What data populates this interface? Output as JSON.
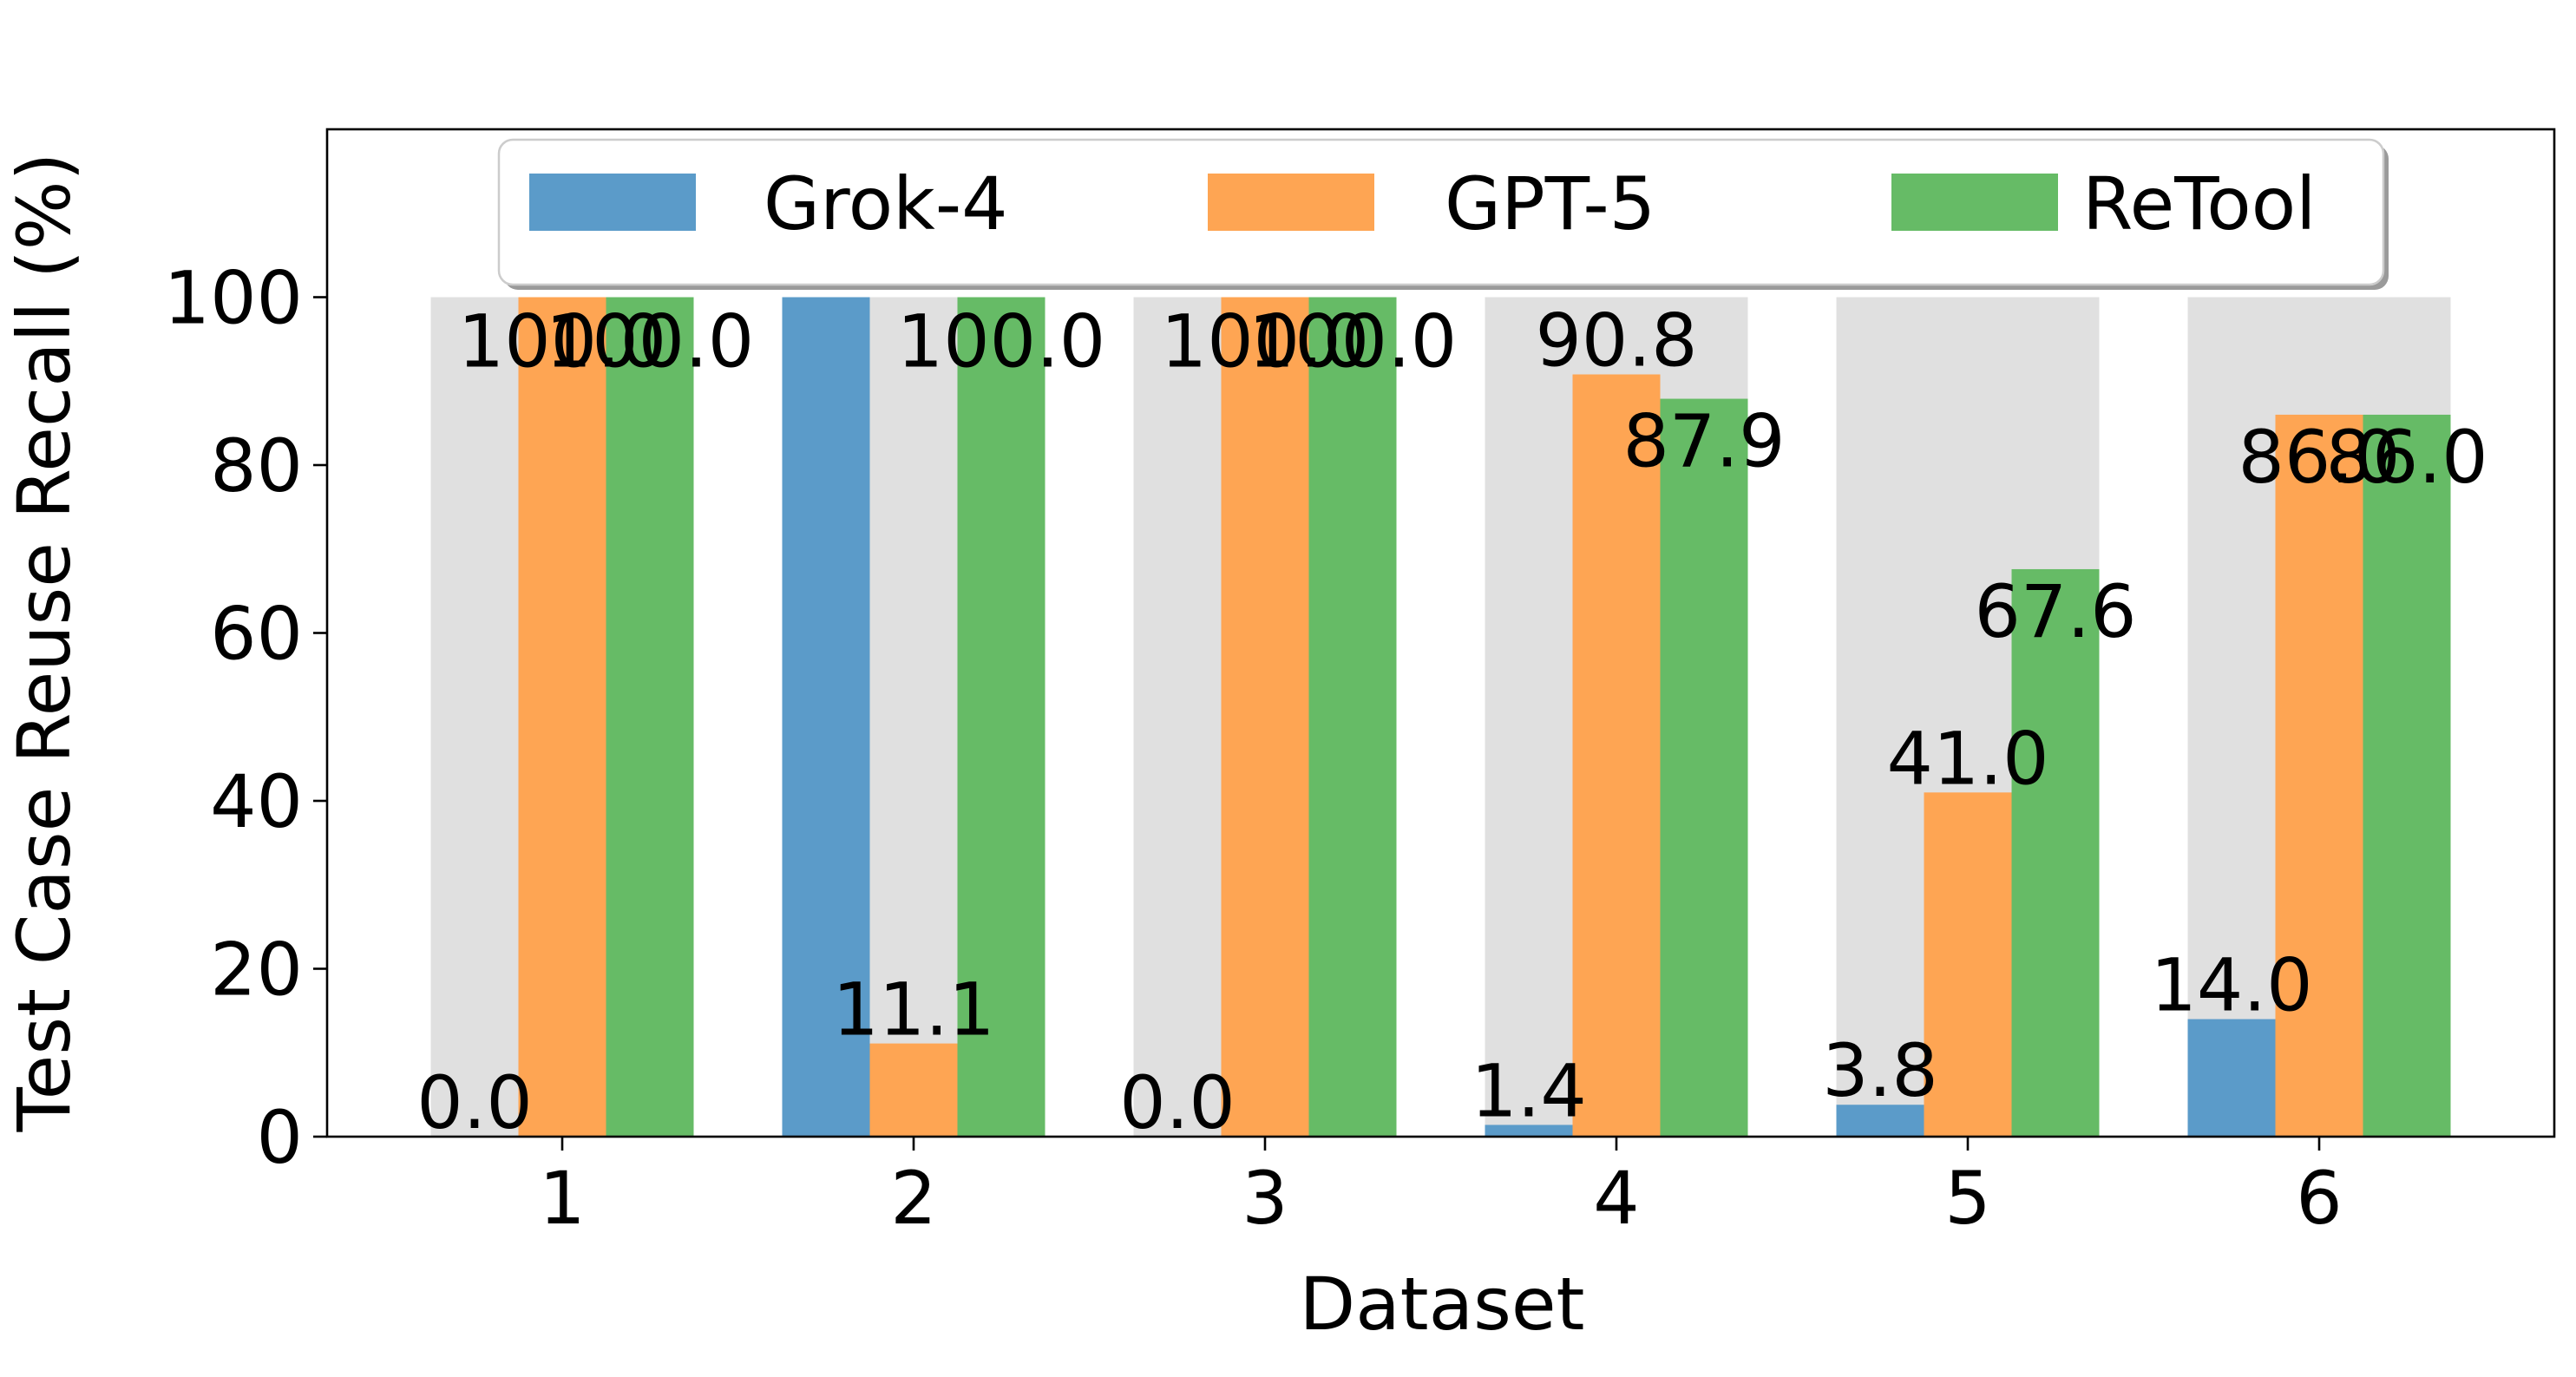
{
  "chart_data": {
    "type": "bar",
    "xlabel": "Dataset",
    "ylabel": "Test Case Reuse Recall (%)",
    "categories": [
      "1",
      "2",
      "3",
      "4",
      "5",
      "6"
    ],
    "ylim": [
      0,
      120
    ],
    "yticks": [
      0,
      20,
      40,
      60,
      80,
      100
    ],
    "grid": false,
    "legend_position": "top-center",
    "background_band_value": 100,
    "series": [
      {
        "name": "Grok-4",
        "color": "#5b9bc9",
        "values": [
          0.0,
          100.0,
          0.0,
          1.4,
          3.8,
          14.0
        ],
        "labels": [
          "0.0",
          "",
          "0.0",
          "1.4",
          "3.8",
          "14.0"
        ]
      },
      {
        "name": "GPT-5",
        "color": "#fea553",
        "values": [
          100.0,
          11.1,
          100.0,
          90.8,
          41.0,
          86.0
        ],
        "labels": [
          "100.0",
          "11.1",
          "100.0",
          "90.8",
          "41.0",
          "86.0"
        ]
      },
      {
        "name": "ReTool",
        "color": "#66bb66",
        "values": [
          100.0,
          100.0,
          100.0,
          87.9,
          67.6,
          86.0
        ],
        "labels": [
          "100.0",
          "100.0",
          "100.0",
          "87.9",
          "67.6",
          "86.0"
        ]
      }
    ]
  }
}
